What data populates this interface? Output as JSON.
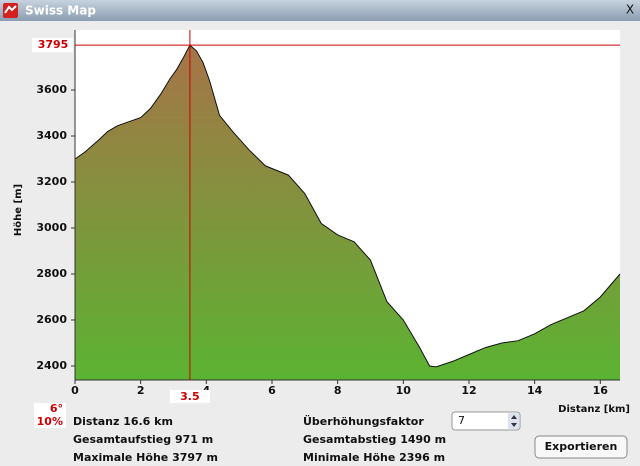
{
  "window": {
    "title": "Swiss Map",
    "close": "X"
  },
  "chart_data": {
    "type": "area",
    "x_label": "Distanz [km]",
    "y_label": "Höhe [m]",
    "x": [
      0,
      0.3,
      0.7,
      1.0,
      1.3,
      1.6,
      2.0,
      2.3,
      2.6,
      2.9,
      3.1,
      3.3,
      3.5,
      3.7,
      3.9,
      4.1,
      4.4,
      4.8,
      5.3,
      5.8,
      6.5,
      7.0,
      7.5,
      8.0,
      8.5,
      9.0,
      9.5,
      10.0,
      10.5,
      10.8,
      11.0,
      11.5,
      12.0,
      12.5,
      13.0,
      13.5,
      14.0,
      14.5,
      15.0,
      15.5,
      16.0,
      16.6
    ],
    "values": [
      3300,
      3330,
      3380,
      3420,
      3445,
      3460,
      3480,
      3520,
      3580,
      3650,
      3690,
      3740,
      3795,
      3770,
      3720,
      3640,
      3490,
      3420,
      3340,
      3270,
      3230,
      3150,
      3020,
      2970,
      2940,
      2860,
      2680,
      2600,
      2480,
      2400,
      2396,
      2420,
      2450,
      2480,
      2500,
      2510,
      2540,
      2580,
      2610,
      2640,
      2700,
      2800
    ],
    "fill_gradient": [
      "#a67448",
      "#5bb332"
    ],
    "xlim": [
      0,
      16.6
    ],
    "ylim": [
      2339,
      3861
    ],
    "xticks": [
      0,
      2,
      4,
      6,
      8,
      10,
      12,
      14,
      16
    ],
    "yticks": [
      2400,
      2600,
      2800,
      3000,
      3200,
      3400,
      3600
    ],
    "cursor": {
      "x": 3.5,
      "y": 3795,
      "color": "#cc0000",
      "slope_deg": "6°",
      "slope_pct": "10%"
    }
  },
  "stats": {
    "left": [
      "Distanz 16.6 km",
      "Gesamtaufstieg 971 m",
      "Maximale Höhe 3797 m"
    ],
    "right": [
      "Gesamtabstieg 1490 m",
      "Minimale Höhe 2396 m"
    ]
  },
  "controls": {
    "factor_label": "Überhöhungsfaktor",
    "factor_value": "7",
    "export_button": "Exportieren"
  }
}
